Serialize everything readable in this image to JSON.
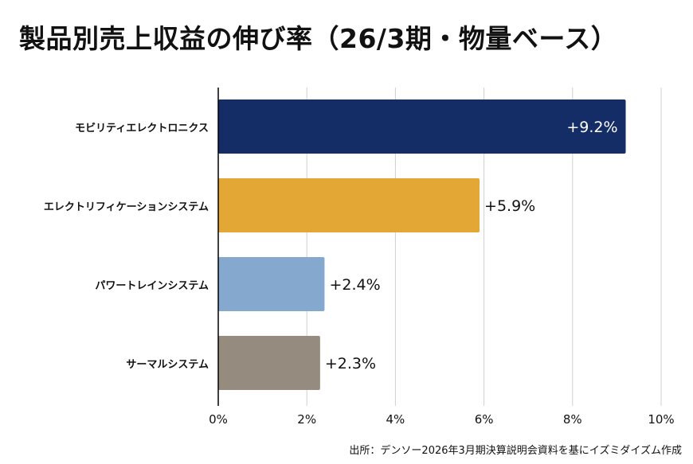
{
  "chart_data": {
    "type": "bar",
    "orientation": "horizontal",
    "title": "製品別売上収益の伸び率（26/3期・物量ベース）",
    "categories": [
      "モビリティエレクトロニクス",
      "エレクトリフィケーションシステム",
      "パワートレインシステム",
      "サーマルシステム"
    ],
    "values": [
      9.2,
      5.9,
      2.4,
      2.3
    ],
    "data_labels": [
      "+9.2%",
      "+5.9%",
      "+2.4%",
      "+2.3%"
    ],
    "bar_colors": [
      "#142d66",
      "#e2a734",
      "#85a8cf",
      "#958b7e"
    ],
    "label_inside": [
      true,
      false,
      false,
      false
    ],
    "xlim": [
      0,
      10
    ],
    "xticks": [
      0,
      2,
      4,
      6,
      8,
      10
    ],
    "xtick_labels": [
      "0%",
      "2%",
      "4%",
      "6%",
      "8%",
      "10%"
    ],
    "grid": "vertical",
    "source": "出所：デンソー2026年3月期決算説明会資料を基にイズミダイズム作成"
  }
}
